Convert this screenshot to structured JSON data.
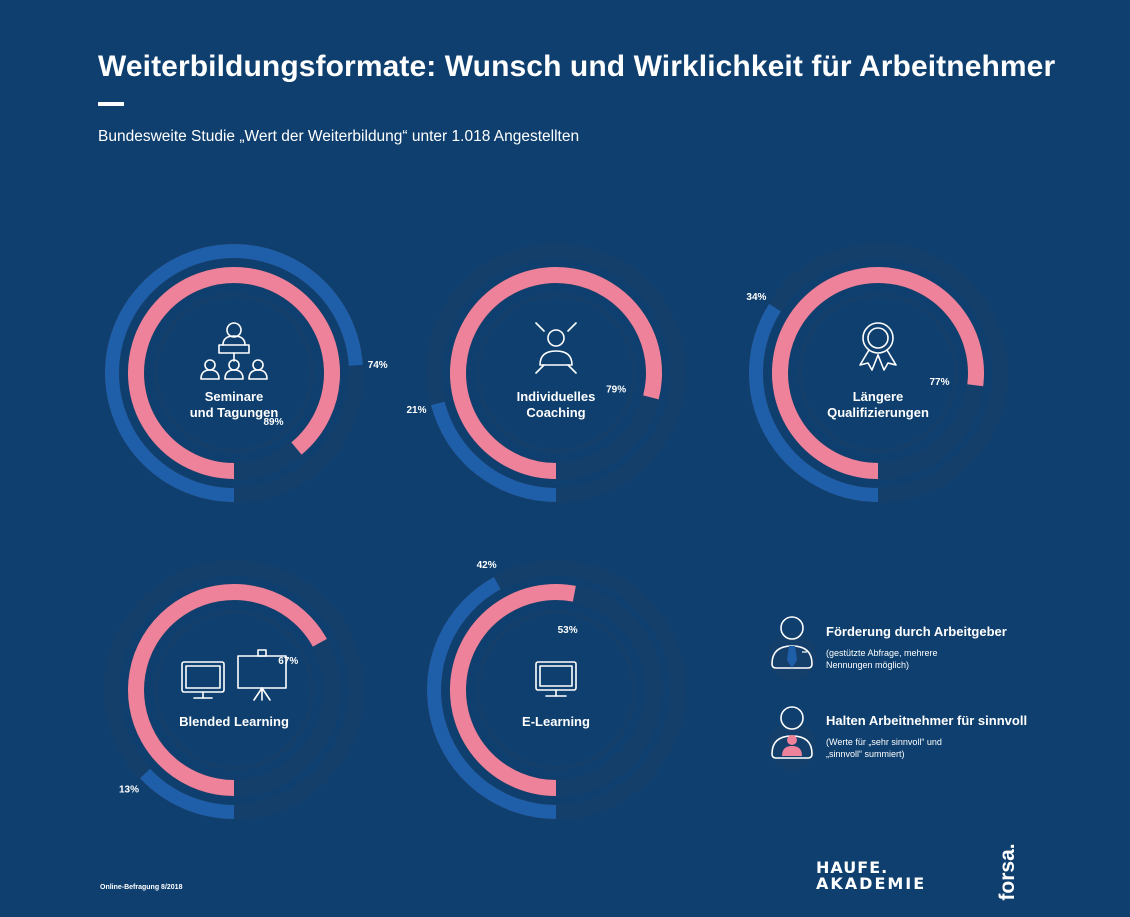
{
  "header": {
    "title": "Weiterbildungsformate: Wunsch und Wirklichkeit für Arbeitnehmer",
    "subtitle": "Bundesweite Studie „Wert der Weiterbildung“ unter 1.018 Angestellten"
  },
  "colors": {
    "background": "#0e3f6e",
    "track": "#153f6b",
    "employer_support": "#1f5ea8",
    "employee_value": "#ef829b",
    "text": "#ffffff"
  },
  "chart_data": {
    "type": "radial-bar",
    "unit": "%",
    "series": [
      {
        "name": "Förderung durch Arbeitgeber",
        "key": "employer"
      },
      {
        "name": "Halten Arbeitnehmer für sinnvoll",
        "key": "employee"
      }
    ],
    "items": [
      {
        "label": [
          "Seminare",
          "und Tagungen"
        ],
        "icon": "seminar-icon",
        "employer": 74,
        "employee": 89
      },
      {
        "label": [
          "Individuelles",
          "Coaching"
        ],
        "icon": "coaching-icon",
        "employer": 21,
        "employee": 79
      },
      {
        "label": [
          "Längere",
          "Qualifizierungen"
        ],
        "icon": "award-rosette-icon",
        "employer": 34,
        "employee": 77
      },
      {
        "label": [
          "Blended Learning"
        ],
        "icon": "monitor-and-flipchart-icon",
        "employer": 13,
        "employee": 67
      },
      {
        "label": [
          "E-Learning"
        ],
        "icon": "monitor-icon",
        "employer": 42,
        "employee": 53
      }
    ]
  },
  "legend": {
    "employer": {
      "title": "Förderung durch Arbeitgeber",
      "note": "(gestützte Abfrage, mehrere Nennungen möglich)",
      "icon": "employer-person-tie-icon"
    },
    "employee": {
      "title": "Halten Arbeitnehmer für sinnvoll",
      "note": "(Werte für „sehr sinnvoll“ und „sinnvoll“ summiert)",
      "icon": "employee-person-icon"
    }
  },
  "footer": {
    "source": "Online-Befragung 8/2018",
    "logo_haufe_line1": "HAUFE.",
    "logo_haufe_line2": "AKADEMIE",
    "logo_forsa": "forsa."
  }
}
